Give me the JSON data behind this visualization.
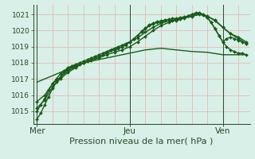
{
  "background_color": "#d8f0e8",
  "plot_bg_color": "#d8f0e8",
  "grid_color": "#e8b8b8",
  "line_color": "#1a5c1a",
  "xlabel": "Pression niveau de la mer( hPa )",
  "xlabel_fontsize": 8,
  "ytick_fontsize": 6.5,
  "xtick_fontsize": 7.5,
  "yticks": [
    1015,
    1016,
    1017,
    1018,
    1019,
    1020,
    1021
  ],
  "ylim": [
    1014.2,
    1021.6
  ],
  "xtick_labels": [
    "Mer",
    "Jeu",
    "Ven"
  ],
  "xtick_positions": [
    0,
    48,
    96
  ],
  "xlim": [
    -2,
    110
  ],
  "series": [
    {
      "x": [
        0,
        2,
        4,
        6,
        8,
        10,
        12,
        14,
        16,
        18,
        20,
        22,
        24,
        26,
        28,
        30,
        32,
        34,
        36,
        38,
        40,
        42,
        44,
        46,
        48,
        50,
        52,
        54,
        56,
        58,
        60,
        62,
        64,
        66,
        68,
        70,
        72,
        74,
        76,
        78,
        80,
        82,
        84,
        86,
        88,
        90,
        92,
        94,
        96,
        98,
        100,
        102,
        104,
        106,
        108
      ],
      "y": [
        1014.5,
        1014.9,
        1015.4,
        1015.9,
        1016.4,
        1016.8,
        1017.1,
        1017.4,
        1017.6,
        1017.8,
        1017.9,
        1018.0,
        1018.1,
        1018.2,
        1018.3,
        1018.4,
        1018.5,
        1018.6,
        1018.7,
        1018.8,
        1018.9,
        1019.0,
        1019.1,
        1019.2,
        1019.3,
        1019.5,
        1019.7,
        1019.9,
        1020.1,
        1020.3,
        1020.4,
        1020.5,
        1020.5,
        1020.6,
        1020.6,
        1020.6,
        1020.6,
        1020.7,
        1020.8,
        1020.9,
        1021.0,
        1021.1,
        1021.1,
        1021.0,
        1020.8,
        1020.5,
        1020.1,
        1019.7,
        1019.3,
        1019.0,
        1018.8,
        1018.7,
        1018.6,
        1018.6,
        1018.5
      ],
      "marker": "D",
      "markersize": 2.0,
      "linewidth": 1.0
    },
    {
      "x": [
        0,
        2,
        4,
        6,
        8,
        10,
        12,
        14,
        16,
        18,
        20,
        22,
        24,
        26,
        28,
        30,
        32,
        34,
        36,
        38,
        40,
        42,
        44,
        46,
        48,
        50,
        52,
        54,
        56,
        58,
        60,
        62,
        64,
        66,
        68,
        70,
        72,
        74,
        76,
        78,
        80,
        82,
        84,
        86,
        88,
        90,
        92,
        94,
        96,
        98,
        100,
        102,
        104,
        106,
        108
      ],
      "y": [
        1015.0,
        1015.4,
        1015.8,
        1016.3,
        1016.7,
        1017.0,
        1017.3,
        1017.5,
        1017.7,
        1017.8,
        1017.85,
        1017.9,
        1018.0,
        1018.1,
        1018.2,
        1018.3,
        1018.4,
        1018.5,
        1018.65,
        1018.8,
        1018.85,
        1018.9,
        1019.0,
        1019.1,
        1019.3,
        1019.5,
        1019.7,
        1019.95,
        1020.15,
        1020.35,
        1020.45,
        1020.55,
        1020.6,
        1020.65,
        1020.7,
        1020.75,
        1020.75,
        1020.8,
        1020.85,
        1020.9,
        1021.0,
        1021.05,
        1021.05,
        1020.95,
        1020.8,
        1020.5,
        1020.1,
        1019.7,
        1019.3,
        1019.5,
        1019.6,
        1019.5,
        1019.4,
        1019.3,
        1019.2
      ],
      "marker": "D",
      "markersize": 2.0,
      "linewidth": 1.0
    },
    {
      "x": [
        0,
        4,
        8,
        12,
        16,
        20,
        24,
        28,
        32,
        36,
        40,
        44,
        48,
        52,
        56,
        60,
        64,
        68,
        72,
        76,
        80,
        84,
        88,
        92,
        96,
        100,
        104,
        108
      ],
      "y": [
        1015.2,
        1015.7,
        1016.5,
        1017.0,
        1017.4,
        1017.7,
        1018.0,
        1018.2,
        1018.4,
        1018.6,
        1018.8,
        1019.0,
        1019.3,
        1019.55,
        1019.9,
        1020.2,
        1020.45,
        1020.6,
        1020.7,
        1020.8,
        1020.9,
        1021.05,
        1020.9,
        1020.6,
        1020.2,
        1019.8,
        1019.6,
        1019.3
      ],
      "marker": "D",
      "markersize": 2.0,
      "linewidth": 1.0
    },
    {
      "x": [
        0,
        4,
        8,
        12,
        16,
        20,
        24,
        28,
        32,
        36,
        40,
        44,
        48,
        52,
        56,
        60,
        64,
        68,
        72,
        76,
        80,
        84,
        88,
        92,
        96,
        100,
        104,
        108
      ],
      "y": [
        1015.6,
        1016.0,
        1016.7,
        1017.1,
        1017.5,
        1017.75,
        1018.0,
        1018.15,
        1018.3,
        1018.5,
        1018.65,
        1018.8,
        1019.0,
        1019.3,
        1019.65,
        1020.0,
        1020.3,
        1020.5,
        1020.65,
        1020.78,
        1020.88,
        1021.0,
        1020.88,
        1020.65,
        1020.2,
        1019.8,
        1019.5,
        1019.2
      ],
      "marker": "D",
      "markersize": 2.0,
      "linewidth": 1.0
    },
    {
      "x": [
        0,
        8,
        16,
        24,
        32,
        40,
        48,
        56,
        64,
        72,
        80,
        88,
        96,
        104,
        108
      ],
      "y": [
        1016.8,
        1017.2,
        1017.6,
        1018.0,
        1018.2,
        1018.4,
        1018.6,
        1018.8,
        1018.9,
        1018.8,
        1018.7,
        1018.65,
        1018.5,
        1018.5,
        1018.5
      ],
      "marker": null,
      "markersize": 0,
      "linewidth": 1.0
    }
  ],
  "vline_positions": [
    0,
    48,
    96
  ],
  "vline_color": "#2a4a2a",
  "vline_linewidth": 0.7,
  "spine_color": "#2a4a2a",
  "tick_color": "#2a4a2a"
}
